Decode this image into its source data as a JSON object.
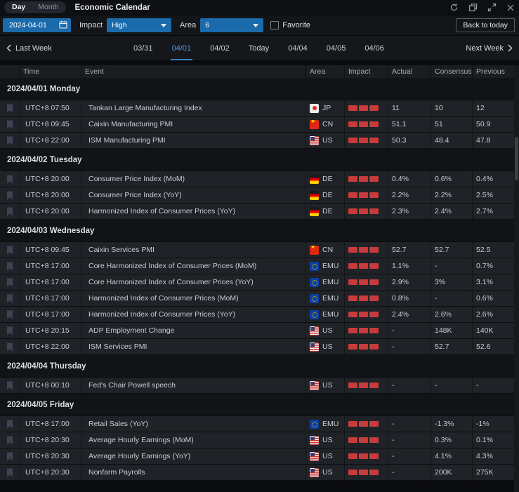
{
  "window": {
    "title": "Economic Calendar",
    "view_tabs": [
      {
        "label": "Day",
        "active": true
      },
      {
        "label": "Month",
        "active": false
      }
    ],
    "controls": [
      "refresh-icon",
      "popout-icon",
      "expand-icon",
      "close-icon"
    ]
  },
  "filters": {
    "date_value": "2024-04-01",
    "impact_label": "Impact",
    "impact_value": "High",
    "area_label": "Area",
    "area_value": "6",
    "favorite_label": "Favorite",
    "favorite_checked": false,
    "back_to_today_label": "Back to today"
  },
  "week_nav": {
    "prev_label": "Last Week",
    "next_label": "Next Week",
    "days": [
      "03/31",
      "04/01",
      "04/02",
      "Today",
      "04/04",
      "04/05",
      "04/06"
    ],
    "selected_day": "04/01"
  },
  "table": {
    "columns": [
      "Time",
      "Event",
      "Area",
      "Impact",
      "Actual",
      "Consensus",
      "Previous"
    ],
    "groups": [
      {
        "date": "2024/04/01 Monday",
        "rows": [
          {
            "time": "UTC+8 07:50",
            "event": "Tankan Large Manufacturing Index",
            "area": "JP",
            "impact": 3,
            "actual": "11",
            "consensus": "10",
            "previous": "12"
          },
          {
            "time": "UTC+8 09:45",
            "event": "Caixin Manufacturing PMI",
            "area": "CN",
            "impact": 3,
            "actual": "51.1",
            "consensus": "51",
            "previous": "50.9"
          },
          {
            "time": "UTC+8 22:00",
            "event": "ISM Manufacturing PMI",
            "area": "US",
            "impact": 3,
            "actual": "50.3",
            "consensus": "48.4",
            "previous": "47.8"
          }
        ]
      },
      {
        "date": "2024/04/02 Tuesday",
        "rows": [
          {
            "time": "UTC+8 20:00",
            "event": "Consumer Price Index (MoM)",
            "area": "DE",
            "impact": 3,
            "actual": "0.4%",
            "consensus": "0.6%",
            "previous": "0.4%"
          },
          {
            "time": "UTC+8 20:00",
            "event": "Consumer Price Index (YoY)",
            "area": "DE",
            "impact": 3,
            "actual": "2.2%",
            "consensus": "2.2%",
            "previous": "2.5%"
          },
          {
            "time": "UTC+8 20:00",
            "event": "Harmonized Index of Consumer Prices (YoY)",
            "area": "DE",
            "impact": 3,
            "actual": "2.3%",
            "consensus": "2.4%",
            "previous": "2.7%"
          }
        ]
      },
      {
        "date": "2024/04/03 Wednesday",
        "rows": [
          {
            "time": "UTC+8 09:45",
            "event": "Caixin Services PMI",
            "area": "CN",
            "impact": 3,
            "actual": "52.7",
            "consensus": "52.7",
            "previous": "52.5"
          },
          {
            "time": "UTC+8 17:00",
            "event": "Core Harmonized Index of Consumer Prices (MoM)",
            "area": "EMU",
            "impact": 3,
            "actual": "1.1%",
            "consensus": "-",
            "previous": "0.7%"
          },
          {
            "time": "UTC+8 17:00",
            "event": "Core Harmonized Index of Consumer Prices (YoY)",
            "area": "EMU",
            "impact": 3,
            "actual": "2.9%",
            "consensus": "3%",
            "previous": "3.1%"
          },
          {
            "time": "UTC+8 17:00",
            "event": "Harmonized Index of Consumer Prices (MoM)",
            "area": "EMU",
            "impact": 3,
            "actual": "0.8%",
            "consensus": "-",
            "previous": "0.6%"
          },
          {
            "time": "UTC+8 17:00",
            "event": "Harmonized Index of Consumer Prices (YoY)",
            "area": "EMU",
            "impact": 3,
            "actual": "2.4%",
            "consensus": "2.6%",
            "previous": "2.6%"
          },
          {
            "time": "UTC+8 20:15",
            "event": "ADP Employment Change",
            "area": "US",
            "impact": 3,
            "actual": "-",
            "consensus": "148K",
            "previous": "140K"
          },
          {
            "time": "UTC+8 22:00",
            "event": "ISM Services PMI",
            "area": "US",
            "impact": 3,
            "actual": "-",
            "consensus": "52.7",
            "previous": "52.6"
          }
        ]
      },
      {
        "date": "2024/04/04 Thursday",
        "rows": [
          {
            "time": "UTC+8 00:10",
            "event": "Fed's Chair Powell speech",
            "area": "US",
            "impact": 3,
            "actual": "-",
            "consensus": "-",
            "previous": "-"
          }
        ]
      },
      {
        "date": "2024/04/05 Friday",
        "rows": [
          {
            "time": "UTC+8 17:00",
            "event": "Retail Sales (YoY)",
            "area": "EMU",
            "impact": 3,
            "actual": "-",
            "consensus": "-1.3%",
            "previous": "-1%"
          },
          {
            "time": "UTC+8 20:30",
            "event": "Average Hourly Earnings (MoM)",
            "area": "US",
            "impact": 3,
            "actual": "-",
            "consensus": "0.3%",
            "previous": "0.1%"
          },
          {
            "time": "UTC+8 20:30",
            "event": "Average Hourly Earnings (YoY)",
            "area": "US",
            "impact": 3,
            "actual": "-",
            "consensus": "4.1%",
            "previous": "4.3%"
          },
          {
            "time": "UTC+8 20:30",
            "event": "Nonfarm Payrolls",
            "area": "US",
            "impact": 3,
            "actual": "-",
            "consensus": "200K",
            "previous": "275K"
          }
        ]
      }
    ]
  },
  "colors": {
    "accent_blue": "#1B6BAC",
    "selected_day_blue": "#4E95DB",
    "impact_red": "#C93B3B",
    "row_bg": "#1F2227",
    "group_bg": "#111317",
    "page_bg": "#0B0C0E"
  }
}
